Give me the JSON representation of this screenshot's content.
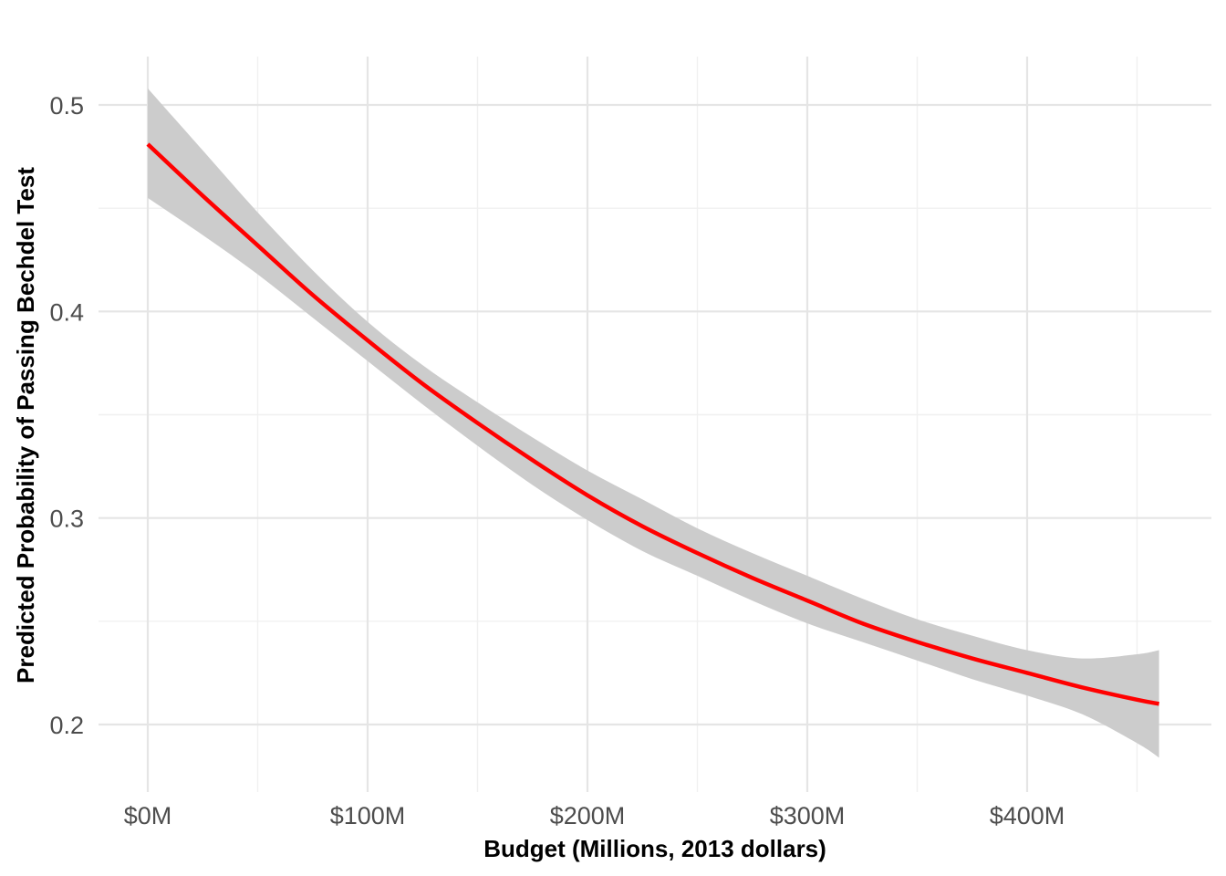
{
  "chart_data": {
    "type": "line",
    "title": "",
    "xlabel": "Budget (Millions, 2013 dollars)",
    "ylabel": "Predicted Probability of Passing Bechdel Test",
    "xlim": [
      0,
      460
    ],
    "ylim": [
      0.17,
      0.52
    ],
    "x_ticks": [
      0,
      100,
      200,
      300,
      400
    ],
    "x_tick_labels": [
      "$0M",
      "$100M",
      "$200M",
      "$300M",
      "$400M"
    ],
    "y_ticks": [
      0.2,
      0.3,
      0.4,
      0.5
    ],
    "y_tick_labels": [
      "0.2",
      "0.3",
      "0.4",
      "0.5"
    ],
    "grid": true,
    "legend": "none",
    "series": [
      {
        "x": [
          0,
          25,
          50,
          75,
          100,
          125,
          150,
          175,
          200,
          225,
          250,
          275,
          300,
          325,
          350,
          375,
          400,
          425,
          450,
          460
        ],
        "y": [
          0.481,
          0.456,
          0.432,
          0.408,
          0.386,
          0.365,
          0.346,
          0.328,
          0.311,
          0.296,
          0.283,
          0.271,
          0.26,
          0.249,
          0.24,
          0.232,
          0.225,
          0.218,
          0.212,
          0.21
        ],
        "lower": [
          0.455,
          0.437,
          0.418,
          0.397,
          0.376,
          0.355,
          0.335,
          0.316,
          0.299,
          0.284,
          0.272,
          0.26,
          0.249,
          0.24,
          0.231,
          0.222,
          0.214,
          0.205,
          0.191,
          0.184
        ],
        "upper": [
          0.508,
          0.478,
          0.448,
          0.42,
          0.395,
          0.374,
          0.356,
          0.339,
          0.323,
          0.309,
          0.295,
          0.283,
          0.272,
          0.261,
          0.251,
          0.243,
          0.236,
          0.232,
          0.234,
          0.236
        ],
        "color": "#ff0000",
        "ribbon_color": "#cccccc"
      }
    ]
  }
}
